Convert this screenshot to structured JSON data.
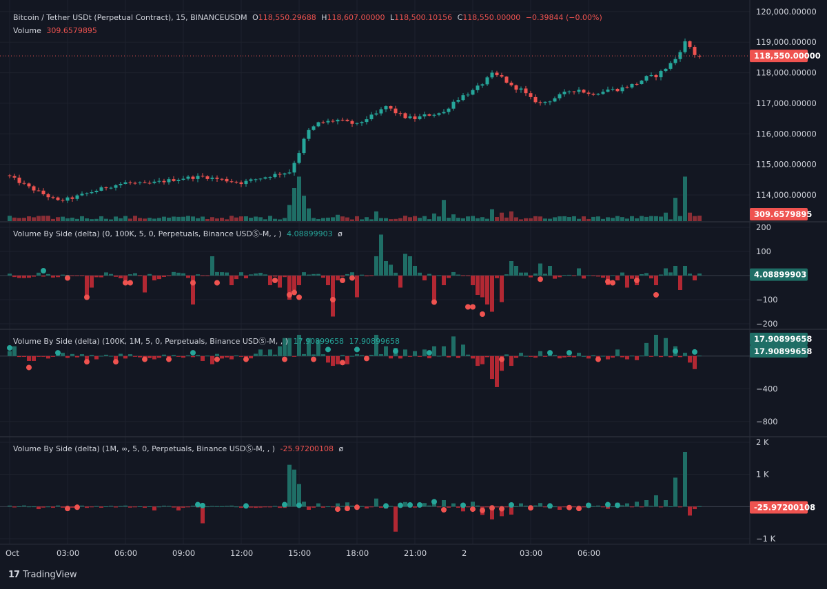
{
  "main_legend": {
    "symbol": "Bitcoin / Tether USDt (Perpetual Contract), 15, BINANCEUSDM",
    "o_label": "O",
    "o": "118,550.29688",
    "h_label": "H",
    "h": "118,607.00000",
    "l_label": "L",
    "l": "118,500.10156",
    "c_label": "C",
    "c": "118,550.00000",
    "change": "−0.39844 (−0.00%)",
    "volume_label": "Volume",
    "volume": "309.6579895"
  },
  "pane1_legend": {
    "title": "Volume By Side (delta) (0, 100K, 5, 0, Perpetuals, Binance USDⓈ-M, , )",
    "value": "4.08899903",
    "suffix": "ø"
  },
  "pane2_legend": {
    "title": "Volume By Side (delta) (100K, 1M, 5, 0, Perpetuals, Binance USDⓈ-M, , )",
    "value": "17.90899658",
    "value2": "17.90899658"
  },
  "pane3_legend": {
    "title": "Volume By Side (delta) (1M, ∞, 5, 0, Perpetuals, Binance USDⓈ-M, , )",
    "value": "-25.97200108",
    "suffix": "ø"
  },
  "price_tags": {
    "last_price": "118,550.00000",
    "volume": "309.6579895",
    "pane1": "4.08899903",
    "pane2_a": "17.90899658",
    "pane2_b": "17.90899658",
    "pane3": "-25.97200108"
  },
  "footer": {
    "brand": "TradingView"
  },
  "colors": {
    "up": "#26a69a",
    "down": "#ef5350",
    "background": "#131722",
    "grid": "#1e222d",
    "text": "#d1d4dc"
  },
  "chart_data": {
    "type": "candlestick",
    "x_ticks": [
      "Oct",
      "03:00",
      "06:00",
      "09:00",
      "12:00",
      "15:00",
      "18:00",
      "21:00",
      "2",
      "03:00",
      "06:00"
    ],
    "price_axis": {
      "ticks": [
        "120,000.00000",
        "119,000.00000",
        "118,000.00000",
        "117,000.00000",
        "116,000.00000",
        "115,000.00000",
        "114,000.00000"
      ],
      "range": [
        113300,
        120200
      ]
    },
    "pane1_axis": {
      "ticks": [
        "200",
        "100",
        "−100",
        "−200"
      ],
      "range": [
        -200,
        200
      ]
    },
    "pane2_axis": {
      "ticks": [
        "−400",
        "−800"
      ],
      "range": [
        -920,
        260
      ]
    },
    "pane3_axis": {
      "ticks": [
        "2 K",
        "1 K",
        "−1 K"
      ],
      "range": [
        -1000,
        2000
      ]
    },
    "close_waypoints": [
      [
        0,
        114600
      ],
      [
        4,
        114250
      ],
      [
        8,
        113950
      ],
      [
        10,
        113800
      ],
      [
        13,
        113900
      ],
      [
        16,
        114050
      ],
      [
        20,
        114250
      ],
      [
        24,
        114400
      ],
      [
        28,
        114350
      ],
      [
        32,
        114450
      ],
      [
        36,
        114550
      ],
      [
        40,
        114600
      ],
      [
        44,
        114500
      ],
      [
        48,
        114400
      ],
      [
        52,
        114550
      ],
      [
        56,
        114700
      ],
      [
        58,
        114750
      ],
      [
        60,
        115400
      ],
      [
        61,
        115800
      ],
      [
        62,
        116100
      ],
      [
        64,
        116350
      ],
      [
        68,
        116450
      ],
      [
        72,
        116300
      ],
      [
        74,
        116500
      ],
      [
        76,
        116650
      ],
      [
        78,
        116900
      ],
      [
        80,
        116700
      ],
      [
        82,
        116550
      ],
      [
        84,
        116500
      ],
      [
        86,
        116600
      ],
      [
        88,
        116650
      ],
      [
        90,
        116700
      ],
      [
        92,
        117050
      ],
      [
        94,
        117250
      ],
      [
        96,
        117400
      ],
      [
        98,
        117650
      ],
      [
        100,
        117950
      ],
      [
        102,
        117850
      ],
      [
        104,
        117550
      ],
      [
        106,
        117450
      ],
      [
        108,
        117150
      ],
      [
        110,
        117000
      ],
      [
        112,
        117100
      ],
      [
        114,
        117250
      ],
      [
        116,
        117400
      ],
      [
        118,
        117450
      ],
      [
        120,
        117300
      ],
      [
        122,
        117350
      ],
      [
        124,
        117450
      ],
      [
        126,
        117450
      ],
      [
        128,
        117550
      ],
      [
        130,
        117650
      ],
      [
        132,
        117850
      ],
      [
        134,
        117900
      ],
      [
        136,
        118150
      ],
      [
        138,
        118450
      ],
      [
        140,
        119000
      ],
      [
        141,
        118850
      ],
      [
        142,
        118600
      ],
      [
        143,
        118550
      ]
    ],
    "volume_axis_max": 1300,
    "volume_spikes": [
      [
        58,
        380
      ],
      [
        59,
        780
      ],
      [
        60,
        1050
      ],
      [
        61,
        600
      ],
      [
        62,
        300
      ],
      [
        68,
        150
      ],
      [
        76,
        230
      ],
      [
        88,
        180
      ],
      [
        90,
        500
      ],
      [
        92,
        160
      ],
      [
        100,
        280
      ],
      [
        102,
        200
      ],
      [
        104,
        230
      ],
      [
        110,
        110
      ],
      [
        133,
        120
      ],
      [
        136,
        200
      ],
      [
        138,
        550
      ],
      [
        140,
        1050
      ],
      [
        141,
        200
      ],
      [
        142,
        120
      ]
    ],
    "delta1_spikes": [
      [
        16,
        -90
      ],
      [
        17,
        -50
      ],
      [
        24,
        -20
      ],
      [
        28,
        -70
      ],
      [
        30,
        -20
      ],
      [
        38,
        -120
      ],
      [
        42,
        80
      ],
      [
        46,
        -40
      ],
      [
        54,
        -40
      ],
      [
        56,
        -50
      ],
      [
        58,
        -100
      ],
      [
        59,
        -60
      ],
      [
        60,
        -40
      ],
      [
        66,
        -40
      ],
      [
        67,
        -170
      ],
      [
        68,
        -20
      ],
      [
        72,
        -90
      ],
      [
        76,
        80
      ],
      [
        77,
        170
      ],
      [
        78,
        60
      ],
      [
        79,
        45
      ],
      [
        81,
        -50
      ],
      [
        82,
        90
      ],
      [
        83,
        80
      ],
      [
        84,
        40
      ],
      [
        86,
        -20
      ],
      [
        88,
        -110
      ],
      [
        90,
        -40
      ],
      [
        96,
        -40
      ],
      [
        97,
        -80
      ],
      [
        98,
        -90
      ],
      [
        99,
        -120
      ],
      [
        100,
        -150
      ],
      [
        102,
        -110
      ],
      [
        104,
        60
      ],
      [
        105,
        40
      ],
      [
        110,
        50
      ],
      [
        112,
        40
      ],
      [
        118,
        30
      ],
      [
        124,
        -40
      ],
      [
        126,
        -20
      ],
      [
        128,
        -50
      ],
      [
        130,
        -40
      ],
      [
        134,
        -40
      ],
      [
        136,
        30
      ],
      [
        138,
        40
      ],
      [
        139,
        -60
      ],
      [
        140,
        40
      ],
      [
        142,
        -20
      ]
    ],
    "delta2_spikes": [
      [
        0,
        60
      ],
      [
        1,
        120
      ],
      [
        4,
        -60
      ],
      [
        5,
        -60
      ],
      [
        8,
        -30
      ],
      [
        11,
        40
      ],
      [
        16,
        -60
      ],
      [
        18,
        -40
      ],
      [
        22,
        -50
      ],
      [
        24,
        -30
      ],
      [
        30,
        -40
      ],
      [
        36,
        -20
      ],
      [
        40,
        -60
      ],
      [
        42,
        -100
      ],
      [
        44,
        -30
      ],
      [
        46,
        -40
      ],
      [
        52,
        80
      ],
      [
        54,
        80
      ],
      [
        56,
        120
      ],
      [
        57,
        220
      ],
      [
        58,
        220
      ],
      [
        60,
        260
      ],
      [
        62,
        220
      ],
      [
        64,
        200
      ],
      [
        66,
        -80
      ],
      [
        67,
        -120
      ],
      [
        68,
        -100
      ],
      [
        70,
        -100
      ],
      [
        74,
        -40
      ],
      [
        76,
        260
      ],
      [
        78,
        120
      ],
      [
        80,
        100
      ],
      [
        82,
        80
      ],
      [
        84,
        60
      ],
      [
        86,
        80
      ],
      [
        88,
        120
      ],
      [
        90,
        120
      ],
      [
        92,
        240
      ],
      [
        94,
        140
      ],
      [
        96,
        -30
      ],
      [
        97,
        -120
      ],
      [
        98,
        -100
      ],
      [
        100,
        -280
      ],
      [
        101,
        -380
      ],
      [
        102,
        -180
      ],
      [
        104,
        -120
      ],
      [
        106,
        40
      ],
      [
        110,
        60
      ],
      [
        112,
        40
      ],
      [
        118,
        40
      ],
      [
        120,
        -30
      ],
      [
        122,
        -60
      ],
      [
        124,
        -40
      ],
      [
        126,
        80
      ],
      [
        128,
        -40
      ],
      [
        130,
        -50
      ],
      [
        132,
        160
      ],
      [
        134,
        260
      ],
      [
        136,
        220
      ],
      [
        138,
        120
      ],
      [
        140,
        40
      ],
      [
        141,
        -80
      ],
      [
        142,
        -160
      ]
    ],
    "delta3_spikes": [
      [
        6,
        -80
      ],
      [
        14,
        -60
      ],
      [
        30,
        -120
      ],
      [
        35,
        -120
      ],
      [
        40,
        -520
      ],
      [
        58,
        1300
      ],
      [
        59,
        1150
      ],
      [
        60,
        700
      ],
      [
        61,
        150
      ],
      [
        62,
        -100
      ],
      [
        64,
        100
      ],
      [
        68,
        100
      ],
      [
        70,
        130
      ],
      [
        74,
        -60
      ],
      [
        76,
        250
      ],
      [
        78,
        -60
      ],
      [
        80,
        -780
      ],
      [
        82,
        140
      ],
      [
        86,
        110
      ],
      [
        88,
        150
      ],
      [
        90,
        200
      ],
      [
        92,
        100
      ],
      [
        94,
        -150
      ],
      [
        96,
        150
      ],
      [
        98,
        -260
      ],
      [
        100,
        -400
      ],
      [
        102,
        -300
      ],
      [
        104,
        -250
      ],
      [
        106,
        100
      ],
      [
        110,
        110
      ],
      [
        112,
        -60
      ],
      [
        114,
        -100
      ],
      [
        118,
        -100
      ],
      [
        124,
        -70
      ],
      [
        126,
        120
      ],
      [
        128,
        100
      ],
      [
        130,
        150
      ],
      [
        132,
        200
      ],
      [
        134,
        350
      ],
      [
        136,
        200
      ],
      [
        138,
        900
      ],
      [
        140,
        1700
      ],
      [
        141,
        -280
      ],
      [
        142,
        -80
      ]
    ],
    "delta1_dots": [
      [
        7,
        20
      ],
      [
        12,
        -10
      ],
      [
        16,
        -90
      ],
      [
        24,
        -30
      ],
      [
        25,
        -30
      ],
      [
        38,
        -30
      ],
      [
        43,
        -30
      ],
      [
        55,
        -20
      ],
      [
        58,
        -80
      ],
      [
        59,
        -70
      ],
      [
        60,
        -90
      ],
      [
        67,
        -100
      ],
      [
        69,
        -20
      ],
      [
        71,
        -10
      ],
      [
        88,
        -110
      ],
      [
        95,
        -130
      ],
      [
        96,
        -130
      ],
      [
        98,
        -160
      ],
      [
        110,
        -15
      ],
      [
        124,
        -25
      ],
      [
        125,
        -30
      ],
      [
        130,
        -20
      ],
      [
        134,
        -80
      ]
    ],
    "delta2_dots": [
      [
        0,
        100
      ],
      [
        4,
        -140
      ],
      [
        10,
        40
      ],
      [
        16,
        -70
      ],
      [
        22,
        -70
      ],
      [
        28,
        -40
      ],
      [
        33,
        -40
      ],
      [
        38,
        40
      ],
      [
        43,
        -40
      ],
      [
        49,
        -40
      ],
      [
        57,
        -40
      ],
      [
        63,
        -40
      ],
      [
        66,
        80
      ],
      [
        69,
        -80
      ],
      [
        72,
        80
      ],
      [
        74,
        -30
      ],
      [
        80,
        60
      ],
      [
        87,
        40
      ],
      [
        102,
        -40
      ],
      [
        112,
        40
      ],
      [
        116,
        40
      ],
      [
        122,
        -40
      ],
      [
        138,
        60
      ],
      [
        142,
        50
      ]
    ],
    "delta3_dots": [
      [
        12,
        -60
      ],
      [
        14,
        -20
      ],
      [
        39,
        60
      ],
      [
        40,
        30
      ],
      [
        49,
        20
      ],
      [
        57,
        60
      ],
      [
        60,
        40
      ],
      [
        68,
        -80
      ],
      [
        70,
        -60
      ],
      [
        72,
        -20
      ],
      [
        78,
        20
      ],
      [
        81,
        40
      ],
      [
        83,
        50
      ],
      [
        85,
        50
      ],
      [
        88,
        150
      ],
      [
        90,
        -100
      ],
      [
        94,
        40
      ],
      [
        96,
        -80
      ],
      [
        98,
        -120
      ],
      [
        100,
        -40
      ],
      [
        102,
        -70
      ],
      [
        104,
        50
      ],
      [
        108,
        -40
      ],
      [
        112,
        20
      ],
      [
        116,
        -30
      ],
      [
        118,
        -60
      ],
      [
        120,
        40
      ],
      [
        124,
        60
      ],
      [
        126,
        40
      ]
    ]
  }
}
